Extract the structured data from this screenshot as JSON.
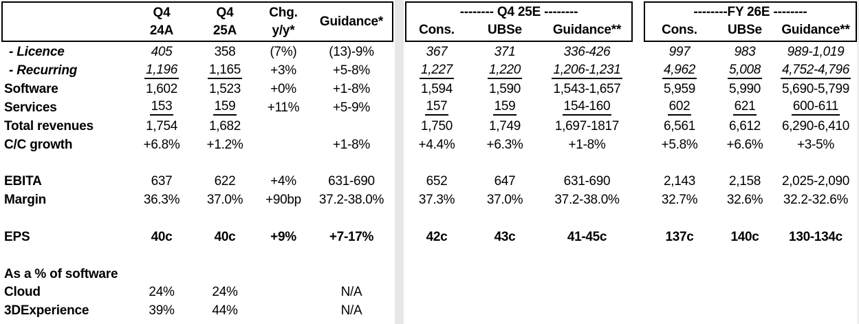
{
  "table": {
    "header": {
      "q4_24a": {
        "l1": "Q4",
        "l2": "24A"
      },
      "q4_25a": {
        "l1": "Q4",
        "l2": "25A"
      },
      "chg": {
        "l1": "Chg.",
        "l2": "y/y*"
      },
      "guidance_label": "Guidance*",
      "q4_25e": {
        "title": "-------- Q4 25E --------",
        "cons": "Cons.",
        "ubse": "UBSe",
        "guidance": "Guidance**"
      },
      "fy_26e": {
        "title": "--------FY 26E --------",
        "cons": "Cons.",
        "ubse": "UBSe",
        "guidance": "Guidance**"
      }
    },
    "rows": [
      {
        "label": "- Licence",
        "label_style": "bi",
        "indent": true,
        "cells": [
          "405",
          "358",
          "(7%)",
          "(13)-9%",
          "367",
          "371",
          "336-426",
          "997",
          "983",
          "989-1,019"
        ],
        "cell_styles": [
          "i",
          "",
          "",
          "",
          "i",
          "i",
          "i",
          "i",
          "i",
          "i"
        ]
      },
      {
        "label": "- Recurring",
        "label_style": "bi",
        "indent": true,
        "cells": [
          "1,196",
          "1,165",
          "+3%",
          "+5-8%",
          "1,227",
          "1,220",
          "1,206-1,231",
          "4,962",
          "5,008",
          "4,752-4,796"
        ],
        "cell_styles": [
          "iu",
          "u",
          "",
          "",
          "iu",
          "iu",
          "iu",
          "iu",
          "iu",
          "iu"
        ]
      },
      {
        "label": "Software",
        "label_style": "b",
        "indent": false,
        "cells": [
          "1,602",
          "1,523",
          "+0%",
          "+1-8%",
          "1,594",
          "1,590",
          "1,543-1,657",
          "5,959",
          "5,990",
          "5,690-5,799"
        ],
        "cell_styles": [
          "",
          "",
          "",
          "",
          "",
          "",
          "",
          "",
          "",
          ""
        ]
      },
      {
        "label": "Services",
        "label_style": "b",
        "indent": false,
        "cells": [
          "153",
          "159",
          "+11%",
          "+5-9%",
          "157",
          "159",
          "154-160",
          "602",
          "621",
          "600-611"
        ],
        "cell_styles": [
          "u",
          "u",
          "",
          "",
          "u",
          "u",
          "u",
          "u",
          "u",
          "u"
        ]
      },
      {
        "label": "Total revenues",
        "label_style": "b",
        "indent": false,
        "cells": [
          "1,754",
          "1,682",
          "",
          "",
          "1,750",
          "1,749",
          "1,697-1817",
          "6,561",
          "6,612",
          "6,290-6,410"
        ],
        "cell_styles": [
          "",
          "",
          "",
          "",
          "",
          "",
          "",
          "",
          "",
          ""
        ]
      },
      {
        "label": "C/C growth",
        "label_style": "b",
        "indent": false,
        "cells": [
          "+6.8%",
          "+1.2%",
          "",
          "+1-8%",
          "+4.4%",
          "+6.3%",
          "+1-8%",
          "+5.8%",
          "+6.6%",
          "+3-5%"
        ],
        "cell_styles": [
          "",
          "",
          "",
          "",
          "",
          "",
          "",
          "",
          "",
          ""
        ]
      },
      {
        "label": "",
        "label_style": "b",
        "indent": false,
        "cells": [
          "",
          "",
          "",
          "",
          "",
          "",
          "",
          "",
          "",
          ""
        ],
        "cell_styles": [
          "",
          "",
          "",
          "",
          "",
          "",
          "",
          "",
          "",
          ""
        ]
      },
      {
        "label": "EBITA",
        "label_style": "b",
        "indent": false,
        "cells": [
          "637",
          "622",
          "+4%",
          "631-690",
          "652",
          "647",
          "631-690",
          "2,143",
          "2,158",
          "2,025-2,090"
        ],
        "cell_styles": [
          "",
          "",
          "",
          "",
          "",
          "",
          "",
          "",
          "",
          ""
        ]
      },
      {
        "label": "Margin",
        "label_style": "b",
        "indent": false,
        "cells": [
          "36.3%",
          "37.0%",
          "+90bp",
          "37.2-38.0%",
          "37.3%",
          "37.0%",
          "37.2-38.0%",
          "32.7%",
          "32.6%",
          "32.2-32.6%"
        ],
        "cell_styles": [
          "",
          "",
          "",
          "",
          "",
          "",
          "",
          "",
          "",
          ""
        ]
      },
      {
        "label": "",
        "label_style": "b",
        "indent": false,
        "cells": [
          "",
          "",
          "",
          "",
          "",
          "",
          "",
          "",
          "",
          ""
        ],
        "cell_styles": [
          "",
          "",
          "",
          "",
          "",
          "",
          "",
          "",
          "",
          ""
        ]
      },
      {
        "label": "EPS",
        "label_style": "b",
        "indent": false,
        "cells": [
          "40c",
          "40c",
          "+9%",
          "+7-17%",
          "42c",
          "43c",
          "41-45c",
          "137c",
          "140c",
          "130-134c"
        ],
        "cell_styles": [
          "b",
          "b",
          "b",
          "b",
          "b",
          "b",
          "b",
          "b",
          "b",
          "b"
        ]
      },
      {
        "label": "",
        "label_style": "b",
        "indent": false,
        "cells": [
          "",
          "",
          "",
          "",
          "",
          "",
          "",
          "",
          "",
          ""
        ],
        "cell_styles": [
          "",
          "",
          "",
          "",
          "",
          "",
          "",
          "",
          "",
          ""
        ]
      },
      {
        "label": "As a % of software",
        "label_style": "b",
        "indent": false,
        "cells": [
          "",
          "",
          "",
          "",
          "",
          "",
          "",
          "",
          "",
          ""
        ],
        "cell_styles": [
          "",
          "",
          "",
          "",
          "",
          "",
          "",
          "",
          "",
          ""
        ]
      },
      {
        "label": "Cloud",
        "label_style": "b",
        "indent": false,
        "cells": [
          "24%",
          "24%",
          "",
          "N/A",
          "",
          "",
          "",
          "",
          "",
          ""
        ],
        "cell_styles": [
          "",
          "",
          "",
          "",
          "",
          "",
          "",
          "",
          "",
          ""
        ]
      },
      {
        "label": "3DExperience",
        "label_style": "b",
        "indent": false,
        "cells": [
          "39%",
          "44%",
          "",
          "N/A",
          "",
          "",
          "",
          "",
          "",
          ""
        ],
        "cell_styles": [
          "",
          "",
          "",
          "",
          "",
          "",
          "",
          "",
          "",
          ""
        ]
      }
    ]
  },
  "colors": {
    "text": "#000000",
    "border": "#000000",
    "divider": "#e7e7e7",
    "background": "#ffffff"
  }
}
